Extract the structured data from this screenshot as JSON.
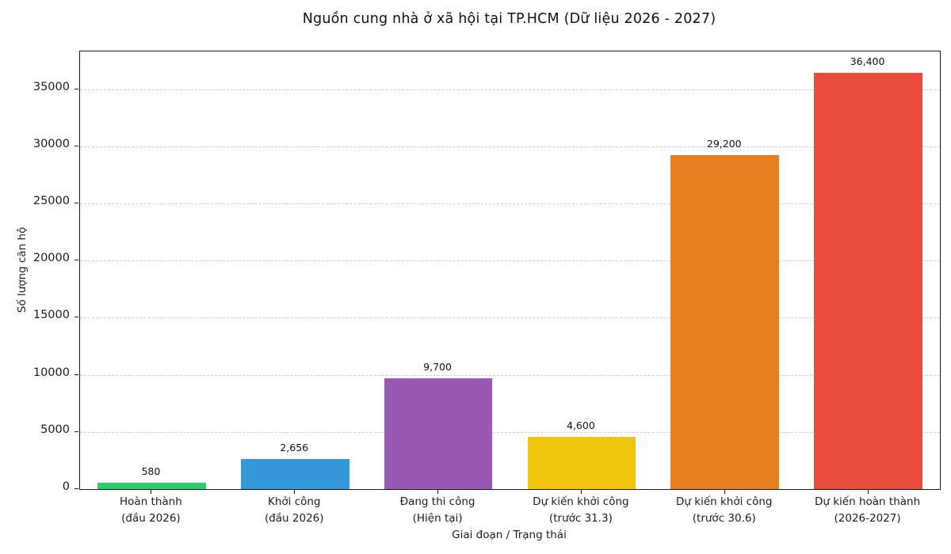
{
  "chart_data": {
    "type": "bar",
    "title": "Nguồn cung nhà ở xã hội tại TP.HCM (Dữ liệu 2026 - 2027)",
    "xlabel": "Giai đoạn / Trạng thái",
    "ylabel": "Số lượng căn hộ",
    "categories": [
      [
        "Hoàn thành",
        "(đầu 2026)"
      ],
      [
        "Khởi công",
        "(đầu 2026)"
      ],
      [
        "Đang thi công",
        "(Hiện tại)"
      ],
      [
        "Dự kiến khởi công",
        "(trước 31.3)"
      ],
      [
        "Dự kiến khởi công",
        "(trước 30.6)"
      ],
      [
        "Dự kiến hoàn thành",
        "(2026-2027)"
      ]
    ],
    "values": [
      580,
      2656,
      9700,
      4600,
      29200,
      36400
    ],
    "value_labels": [
      "580",
      "2,656",
      "9,700",
      "4,600",
      "29,200",
      "36,400"
    ],
    "bar_colors": [
      "#2ecc71",
      "#3498db",
      "#9b59b6",
      "#f1c40f",
      "#e67e22",
      "#e74c3c"
    ],
    "y_ticks": [
      0,
      5000,
      10000,
      15000,
      20000,
      25000,
      30000,
      35000
    ],
    "ylim": [
      0,
      38300
    ],
    "grid": "horizontal-dashed",
    "grid_color": "#cccccc",
    "legend": "none",
    "background_color": "#ffffff",
    "text_color": "#111111"
  }
}
